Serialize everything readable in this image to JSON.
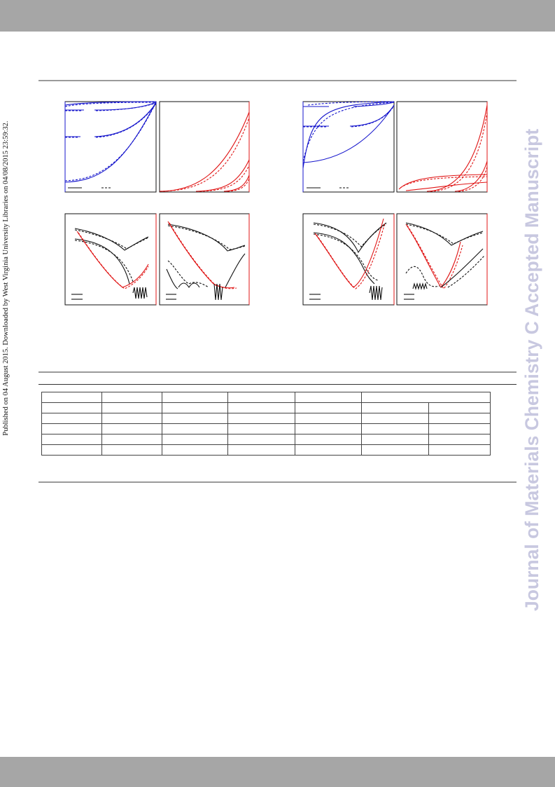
{
  "side_note": "Published on 04 August 2015. Downloaded by West Virginia University Libraries on 04/08/2015 23:59:32.",
  "watermark": "Journal of Materials Chemistry C Accepted Manuscript",
  "colors": {
    "blue_curves": "#1515cc",
    "red_curves": "#e01515",
    "black_curves": "#111111",
    "bars": "#a6a6a6",
    "rules": "#9a9a9a",
    "watermark": "#c8c8e0"
  },
  "figure": {
    "panels": [
      {
        "id": "top-left-blue",
        "curve_color": "blue",
        "legend_styles": [
          "solid",
          "dashed"
        ]
      },
      {
        "id": "top-left-red",
        "curve_color": "red"
      },
      {
        "id": "top-right-blue",
        "curve_color": "blue",
        "legend_styles": [
          "solid",
          "dashed"
        ]
      },
      {
        "id": "top-right-red",
        "curve_color": "red"
      },
      {
        "id": "bottom-left-a",
        "curve_color": "black+red"
      },
      {
        "id": "bottom-left-b",
        "curve_color": "black+red"
      },
      {
        "id": "bottom-right-a",
        "curve_color": "black+red"
      },
      {
        "id": "bottom-right-b",
        "curve_color": "black+red"
      }
    ]
  },
  "table": {
    "rows": 6,
    "columns": 8,
    "merged_header": "last two columns share one header cell",
    "cells": []
  }
}
